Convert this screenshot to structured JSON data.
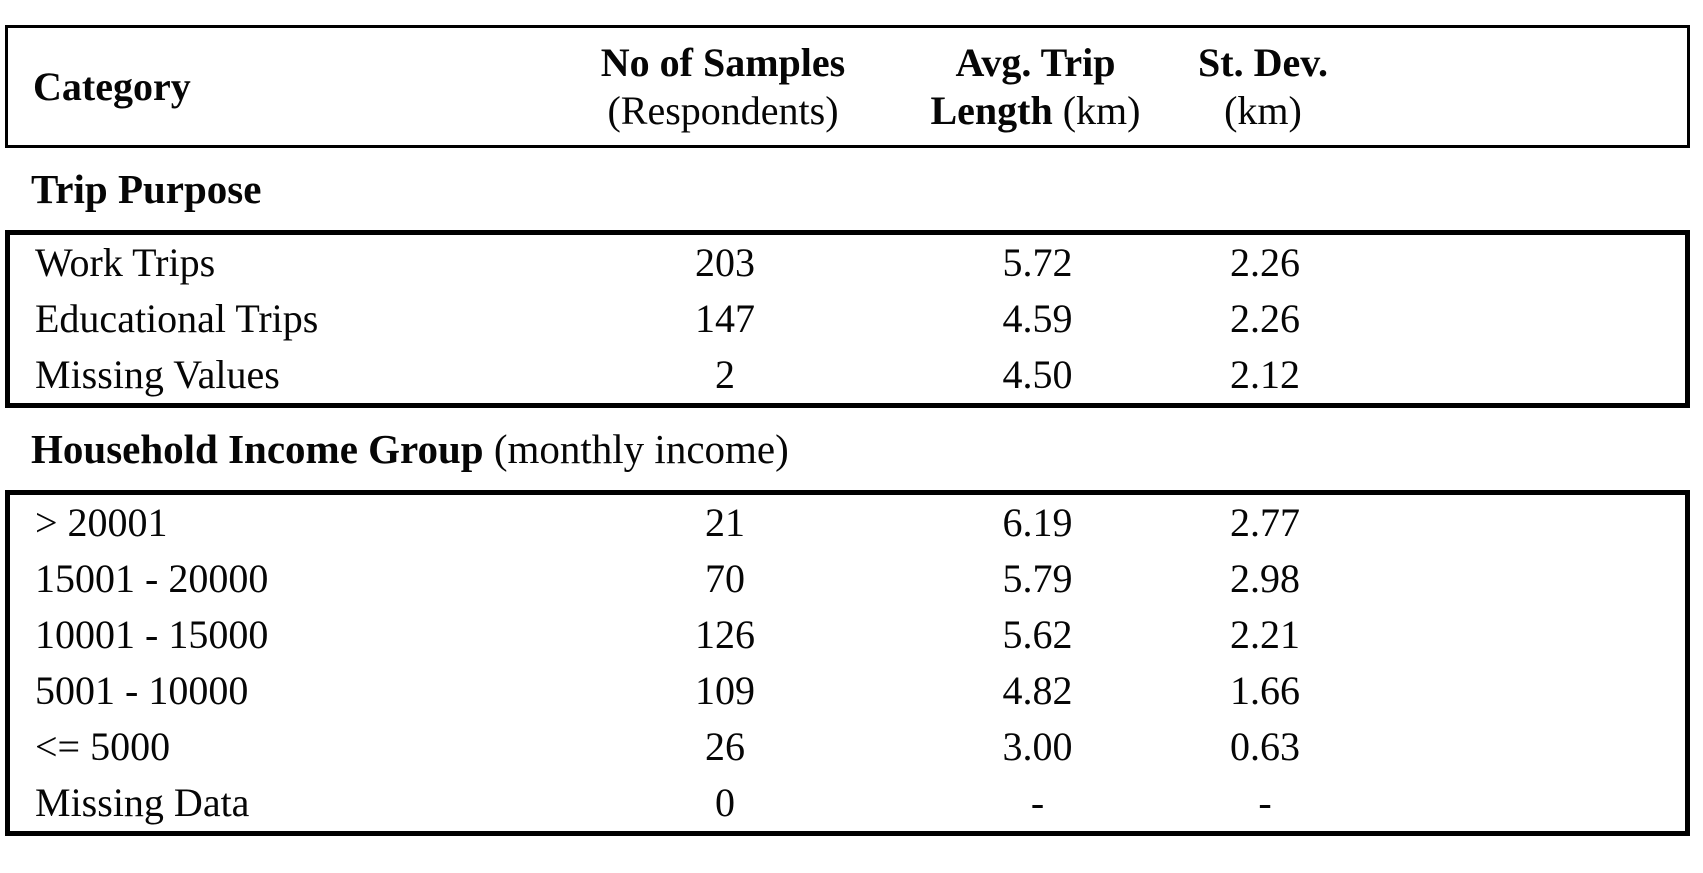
{
  "table": {
    "header": {
      "category": "Category",
      "samples_line1": "No of Samples",
      "samples_line2": "(Respondents)",
      "avg_line1": "Avg. Trip",
      "avg_line2_bold": "Length",
      "avg_line2_normal": " (km)",
      "stdev_bold": "St. Dev.",
      "stdev_normal": " (km)"
    },
    "sections": [
      {
        "heading_bold": "Trip Purpose",
        "heading_normal": "",
        "rows": [
          {
            "category": "Work Trips",
            "samples": "203",
            "avg_trip_length": "5.72",
            "st_dev": "2.26"
          },
          {
            "category": "Educational Trips",
            "samples": "147",
            "avg_trip_length": "4.59",
            "st_dev": "2.26"
          },
          {
            "category": "Missing Values",
            "samples": "2",
            "avg_trip_length": "4.50",
            "st_dev": "2.12"
          }
        ]
      },
      {
        "heading_bold": "Household Income Group",
        "heading_normal": " (monthly income)",
        "rows": [
          {
            "category": "> 20001",
            "samples": "21",
            "avg_trip_length": "6.19",
            "st_dev": "2.77"
          },
          {
            "category": "15001 - 20000",
            "samples": "70",
            "avg_trip_length": "5.79",
            "st_dev": "2.98"
          },
          {
            "category": "10001 - 15000",
            "samples": "126",
            "avg_trip_length": "5.62",
            "st_dev": "2.21"
          },
          {
            "category": "5001 - 10000",
            "samples": "109",
            "avg_trip_length": "4.82",
            "st_dev": "1.66"
          },
          {
            "category": "<= 5000",
            "samples": "26",
            "avg_trip_length": "3.00",
            "st_dev": "0.63"
          },
          {
            "category": "Missing Data",
            "samples": "0",
            "avg_trip_length": "-",
            "st_dev": "-"
          }
        ]
      }
    ],
    "colors": {
      "text": "#060606",
      "border": "#000000",
      "background": "#ffffff"
    }
  },
  "chart_data": {
    "type": "table",
    "title": "",
    "columns": [
      "Category",
      "No of Samples (Respondents)",
      "Avg. Trip Length (km)",
      "St. Dev. (km)"
    ],
    "groups": [
      {
        "name": "Trip Purpose",
        "rows": [
          [
            "Work Trips",
            203,
            5.72,
            2.26
          ],
          [
            "Educational Trips",
            147,
            4.59,
            2.26
          ],
          [
            "Missing Values",
            2,
            4.5,
            2.12
          ]
        ]
      },
      {
        "name": "Household Income Group (monthly income)",
        "rows": [
          [
            "> 20001",
            21,
            6.19,
            2.77
          ],
          [
            "15001 - 20000",
            70,
            5.79,
            2.98
          ],
          [
            "10001 - 15000",
            126,
            5.62,
            2.21
          ],
          [
            "5001 - 10000",
            109,
            4.82,
            1.66
          ],
          [
            "<= 5000",
            26,
            3.0,
            0.63
          ],
          [
            "Missing Data",
            0,
            "-",
            "-"
          ]
        ]
      }
    ]
  }
}
